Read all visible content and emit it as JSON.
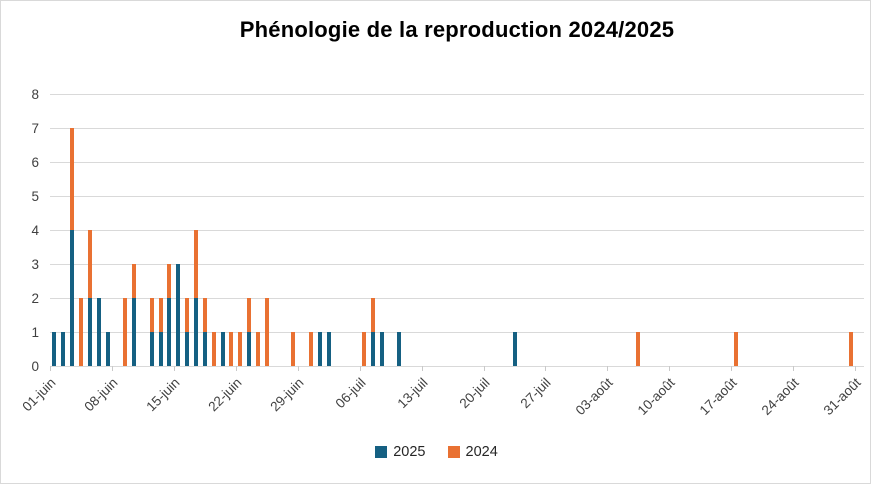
{
  "title": "Phénologie de la reproduction 2024/2025",
  "legend": {
    "items": [
      {
        "label": "2025",
        "color": "#156082"
      },
      {
        "label": "2024",
        "color": "#E97132"
      }
    ]
  },
  "chart_data": {
    "type": "bar",
    "stacked": true,
    "title": "Phénologie de la reproduction 2024/2025",
    "xlabel": "",
    "ylabel": "",
    "ylim": [
      0,
      8
    ],
    "yticks": [
      0,
      1,
      2,
      3,
      4,
      5,
      6,
      7,
      8
    ],
    "grid": true,
    "legend_position": "bottom",
    "num_categories": 92,
    "x_tick_labels": [
      {
        "index": 0,
        "label": "01-juin"
      },
      {
        "index": 7,
        "label": "08-juin"
      },
      {
        "index": 14,
        "label": "15-juin"
      },
      {
        "index": 21,
        "label": "22-juin"
      },
      {
        "index": 28,
        "label": "29-juin"
      },
      {
        "index": 35,
        "label": "06-juil"
      },
      {
        "index": 42,
        "label": "13-juil"
      },
      {
        "index": 49,
        "label": "20-juil"
      },
      {
        "index": 56,
        "label": "27-juil"
      },
      {
        "index": 63,
        "label": "03-août"
      },
      {
        "index": 70,
        "label": "10-août"
      },
      {
        "index": 77,
        "label": "17-août"
      },
      {
        "index": 84,
        "label": "24-août"
      },
      {
        "index": 91,
        "label": "31-août"
      }
    ],
    "series": [
      {
        "name": "2025",
        "color": "#156082"
      },
      {
        "name": "2024",
        "color": "#E97132"
      }
    ],
    "days": [
      {
        "index": 0,
        "date": "01-juin",
        "v2025": 1,
        "v2024": 0
      },
      {
        "index": 1,
        "date": "02-juin",
        "v2025": 1,
        "v2024": 0
      },
      {
        "index": 2,
        "date": "03-juin",
        "v2025": 4,
        "v2024": 3
      },
      {
        "index": 3,
        "date": "04-juin",
        "v2025": 0,
        "v2024": 2
      },
      {
        "index": 4,
        "date": "05-juin",
        "v2025": 2,
        "v2024": 2
      },
      {
        "index": 5,
        "date": "06-juin",
        "v2025": 2,
        "v2024": 0
      },
      {
        "index": 6,
        "date": "07-juin",
        "v2025": 1,
        "v2024": 0
      },
      {
        "index": 8,
        "date": "09-juin",
        "v2025": 0,
        "v2024": 2
      },
      {
        "index": 9,
        "date": "10-juin",
        "v2025": 2,
        "v2024": 1
      },
      {
        "index": 11,
        "date": "12-juin",
        "v2025": 1,
        "v2024": 1
      },
      {
        "index": 12,
        "date": "13-juin",
        "v2025": 1,
        "v2024": 1
      },
      {
        "index": 13,
        "date": "14-juin",
        "v2025": 2,
        "v2024": 1
      },
      {
        "index": 14,
        "date": "15-juin",
        "v2025": 3,
        "v2024": 0
      },
      {
        "index": 15,
        "date": "16-juin",
        "v2025": 1,
        "v2024": 1
      },
      {
        "index": 16,
        "date": "17-juin",
        "v2025": 2,
        "v2024": 2
      },
      {
        "index": 17,
        "date": "18-juin",
        "v2025": 1,
        "v2024": 1
      },
      {
        "index": 18,
        "date": "19-juin",
        "v2025": 0,
        "v2024": 1
      },
      {
        "index": 19,
        "date": "20-juin",
        "v2025": 1,
        "v2024": 0
      },
      {
        "index": 20,
        "date": "21-juin",
        "v2025": 0,
        "v2024": 1
      },
      {
        "index": 21,
        "date": "22-juin",
        "v2025": 0,
        "v2024": 1
      },
      {
        "index": 22,
        "date": "23-juin",
        "v2025": 1,
        "v2024": 1
      },
      {
        "index": 23,
        "date": "24-juin",
        "v2025": 0,
        "v2024": 1
      },
      {
        "index": 24,
        "date": "25-juin",
        "v2025": 0,
        "v2024": 2
      },
      {
        "index": 27,
        "date": "28-juin",
        "v2025": 0,
        "v2024": 1
      },
      {
        "index": 29,
        "date": "30-juin",
        "v2025": 0,
        "v2024": 1
      },
      {
        "index": 30,
        "date": "01-juil",
        "v2025": 1,
        "v2024": 0
      },
      {
        "index": 31,
        "date": "02-juil",
        "v2025": 1,
        "v2024": 0
      },
      {
        "index": 35,
        "date": "06-juil",
        "v2025": 0,
        "v2024": 1
      },
      {
        "index": 36,
        "date": "07-juil",
        "v2025": 1,
        "v2024": 1
      },
      {
        "index": 37,
        "date": "08-juil",
        "v2025": 1,
        "v2024": 0
      },
      {
        "index": 39,
        "date": "10-juil",
        "v2025": 1,
        "v2024": 0
      },
      {
        "index": 52,
        "date": "23-juil",
        "v2025": 1,
        "v2024": 0
      },
      {
        "index": 66,
        "date": "06-août",
        "v2025": 0,
        "v2024": 1
      },
      {
        "index": 77,
        "date": "17-août",
        "v2025": 0,
        "v2024": 1
      },
      {
        "index": 90,
        "date": "30-août",
        "v2025": 0,
        "v2024": 1
      }
    ]
  }
}
